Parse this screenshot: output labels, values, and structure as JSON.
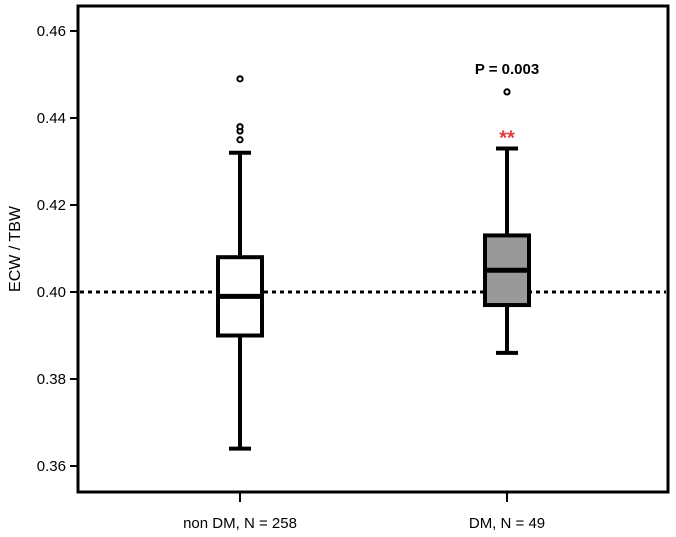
{
  "chart_data": {
    "type": "box",
    "ylabel": "ECW / TBW",
    "ylim": [
      0.355,
      0.465
    ],
    "yticks": [
      "0.36",
      "0.38",
      "0.40",
      "0.42",
      "0.44",
      "0.46"
    ],
    "ytick_values": [
      0.36,
      0.38,
      0.4,
      0.42,
      0.44,
      0.46
    ],
    "reference_line": 0.4,
    "reference_line_style": "dotted",
    "grid": false,
    "categories": [
      "non DM, N = 258",
      "DM, N = 49"
    ],
    "boxes": [
      {
        "category": "non DM, N = 258",
        "whisker_low": 0.364,
        "q1": 0.39,
        "median": 0.399,
        "q3": 0.408,
        "whisker_high": 0.432,
        "outliers": [
          0.435,
          0.437,
          0.438,
          0.449
        ],
        "fill": "#ffffff"
      },
      {
        "category": "DM, N = 49",
        "whisker_low": 0.386,
        "q1": 0.397,
        "median": 0.405,
        "q3": 0.413,
        "whisker_high": 0.433,
        "outliers": [
          0.446
        ],
        "fill": "#999999"
      }
    ],
    "annotations": {
      "p_value": "P = 0.003",
      "significance": "**",
      "significance_color": "#e03c3c"
    }
  }
}
